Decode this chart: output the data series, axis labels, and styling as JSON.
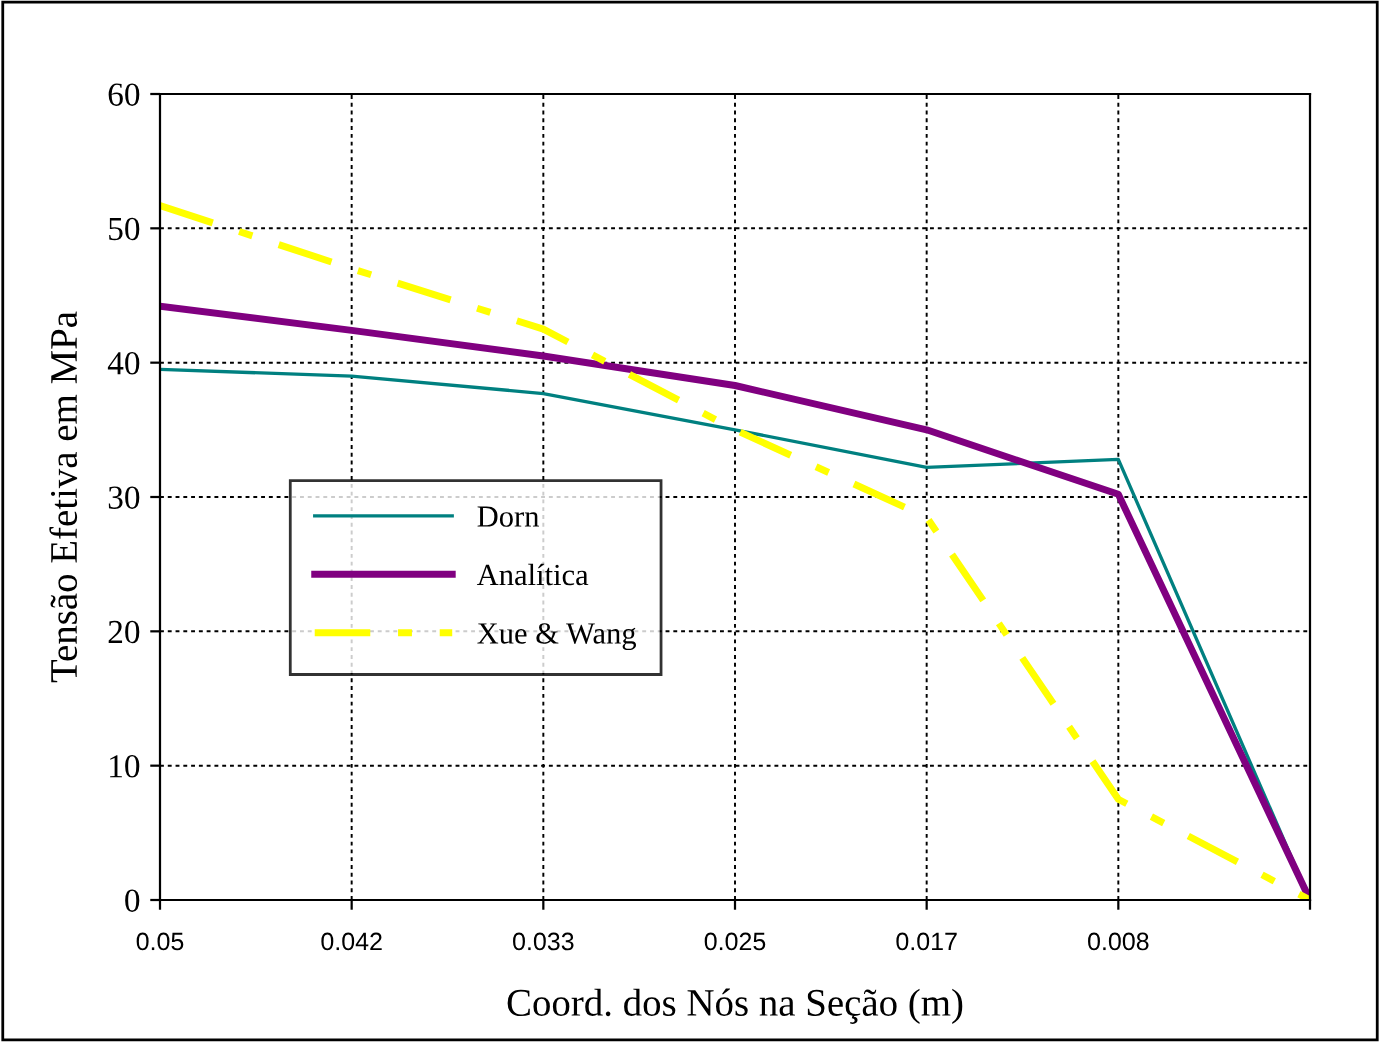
{
  "chart_data": {
    "type": "line",
    "xlabel": "Coord. dos Nós na Seção (m)",
    "ylabel": "Tensão Efetiva em MPa",
    "categories": [
      "0.05",
      "0.042",
      "0.033",
      "0.025",
      "0.017",
      "0.008",
      null
    ],
    "ylim": [
      0,
      60
    ],
    "yticks": [
      0,
      10,
      20,
      30,
      40,
      50,
      60
    ],
    "grid": true,
    "legend": "center left",
    "marker": "none",
    "series": [
      {
        "name": "Dorn",
        "color": "#008080",
        "line_style": "solid",
        "values": [
          39.5,
          39,
          37.7,
          35,
          32.2,
          32.8,
          0
        ]
      },
      {
        "name": "Analítica",
        "color": "#800080",
        "line_style": "solid",
        "values": [
          44.2,
          42.4,
          40.5,
          38.3,
          35,
          30.2,
          0
        ]
      },
      {
        "name": "Xue & Wang",
        "color": "#ffff00",
        "line_style": "dashed",
        "values": [
          51.7,
          47,
          42.5,
          35,
          28.5,
          7.5,
          0
        ]
      }
    ]
  }
}
